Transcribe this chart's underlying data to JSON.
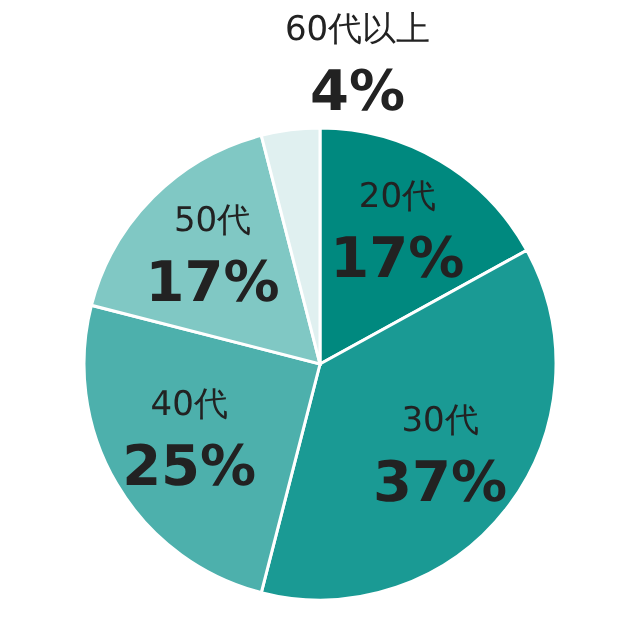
{
  "chart_data": {
    "type": "pie",
    "categories": [
      "20代",
      "30代",
      "40代",
      "50代",
      "60代以上"
    ],
    "values": [
      17,
      37,
      25,
      17,
      4
    ],
    "colors": [
      "#00897f",
      "#1a9a94",
      "#4db0ac",
      "#80c8c4",
      "#e0f0f0"
    ],
    "value_labels": [
      "17%",
      "37%",
      "25%",
      "17%",
      "4%"
    ]
  }
}
